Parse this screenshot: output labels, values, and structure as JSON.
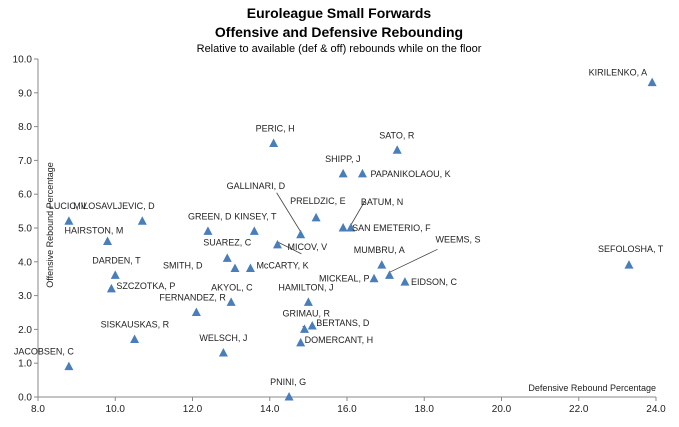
{
  "chart_data": {
    "type": "scatter",
    "title": "Euroleague Small Forwards",
    "title_line2": "Offensive and Defensive Rebounding",
    "subtitle": "Relative to available (def & off) rebounds while on the floor",
    "xlabel": "Defensive Rebound Percentage",
    "ylabel": "Offensive Rebound Percentage",
    "xlim": [
      8.0,
      24.0
    ],
    "ylim": [
      0.0,
      10.0
    ],
    "x_ticks": [
      "8.0",
      "10.0",
      "12.0",
      "14.0",
      "16.0",
      "18.0",
      "20.0",
      "22.0",
      "24.0"
    ],
    "y_ticks": [
      "0.0",
      "1.0",
      "2.0",
      "3.0",
      "4.0",
      "5.0",
      "6.0",
      "7.0",
      "8.0",
      "9.0",
      "10.0"
    ],
    "grid": false,
    "legend": "none",
    "marker_color": "#4a7ebb",
    "points": [
      {
        "label": "KIRILENKO, A",
        "x": 23.9,
        "y": 9.3
      },
      {
        "label": "PERIC, H",
        "x": 14.1,
        "y": 7.5
      },
      {
        "label": "SATO, R",
        "x": 17.3,
        "y": 7.3
      },
      {
        "label": "SHIPP, J",
        "x": 15.9,
        "y": 6.6
      },
      {
        "label": "PAPANIKOLAOU, K",
        "x": 16.4,
        "y": 6.6
      },
      {
        "label": "GALLINARI, D",
        "x": 14.8,
        "y": 4.8
      },
      {
        "label": "BATUM, N",
        "x": 16.1,
        "y": 5.0
      },
      {
        "label": "PRELDZIC, E",
        "x": 15.2,
        "y": 5.3
      },
      {
        "label": "SAN EMETERIO, F",
        "x": 15.9,
        "y": 5.0
      },
      {
        "label": "LUCIC, V",
        "x": 8.8,
        "y": 5.2
      },
      {
        "label": "MILOSAVLJEVIC, D",
        "x": 10.7,
        "y": 5.2
      },
      {
        "label": "GREEN, D",
        "x": 12.4,
        "y": 4.9
      },
      {
        "label": "KINSEY, T",
        "x": 13.6,
        "y": 4.9
      },
      {
        "label": "HAIRSTON, M",
        "x": 9.8,
        "y": 4.6
      },
      {
        "label": "SUAREZ, C",
        "x": 12.9,
        "y": 4.1
      },
      {
        "label": "MICOV, V",
        "x": 14.2,
        "y": 4.5
      },
      {
        "label": "MUMBRU, A",
        "x": 16.9,
        "y": 3.9
      },
      {
        "label": "WEEMS, S",
        "x": 17.1,
        "y": 3.6
      },
      {
        "label": "SEFOLOSHA, T",
        "x": 23.3,
        "y": 3.9
      },
      {
        "label": "SMITH, D",
        "x": 13.1,
        "y": 3.8
      },
      {
        "label": "McCARTY, K",
        "x": 13.5,
        "y": 3.8
      },
      {
        "label": "DARDEN, T",
        "x": 10.0,
        "y": 3.6
      },
      {
        "label": "MICKEAL, P",
        "x": 16.7,
        "y": 3.5
      },
      {
        "label": "EIDSON, C",
        "x": 17.5,
        "y": 3.4
      },
      {
        "label": "SZCZOTKA, P",
        "x": 9.9,
        "y": 3.2
      },
      {
        "label": "AKYOL, C",
        "x": 13.0,
        "y": 2.8
      },
      {
        "label": "HAMILTON, J",
        "x": 15.0,
        "y": 2.8
      },
      {
        "label": "FERNANDEZ, R",
        "x": 12.1,
        "y": 2.5
      },
      {
        "label": "SISKAUSKAS, R",
        "x": 10.5,
        "y": 1.7
      },
      {
        "label": "GRIMAU, R",
        "x": 14.9,
        "y": 2.0
      },
      {
        "label": "BERTANS, D",
        "x": 15.1,
        "y": 2.1
      },
      {
        "label": "DOMERCANT, H",
        "x": 14.8,
        "y": 1.6
      },
      {
        "label": "WELSCH, J",
        "x": 12.8,
        "y": 1.3
      },
      {
        "label": "JACOBSEN, C",
        "x": 8.8,
        "y": 0.9
      },
      {
        "label": "PNINI, G",
        "x": 14.5,
        "y": 0.0
      }
    ]
  }
}
